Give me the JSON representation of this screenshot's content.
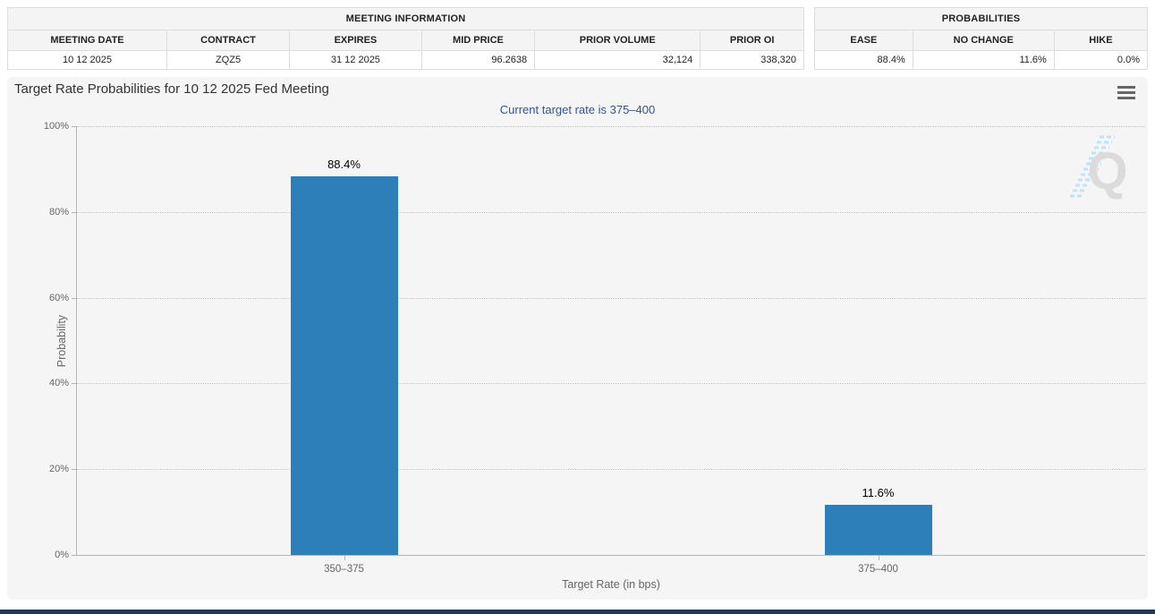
{
  "meeting_information_table": {
    "title": "MEETING INFORMATION",
    "columns": [
      "MEETING DATE",
      "CONTRACT",
      "EXPIRES",
      "MID PRICE",
      "PRIOR VOLUME",
      "PRIOR OI"
    ],
    "row": [
      "10 12 2025",
      "ZQZ5",
      "31 12 2025",
      "96.2638",
      "32,124",
      "338,320"
    ]
  },
  "probabilities_table": {
    "title": "PROBABILITIES",
    "columns": [
      "EASE",
      "NO CHANGE",
      "HIKE"
    ],
    "row": [
      "88.4%",
      "11.6%",
      "0.0%"
    ]
  },
  "watermark": {
    "letter": "Q"
  },
  "chart_data": {
    "type": "bar",
    "title": "Target Rate Probabilities for 10 12 2025 Fed Meeting",
    "subtitle": "Current target rate is 375–400",
    "categories": [
      "350–375",
      "375–400"
    ],
    "values": [
      88.4,
      11.6
    ],
    "data_labels": [
      "88.4%",
      "11.6%"
    ],
    "xlabel": "Target Rate (in bps)",
    "ylabel": "Probability",
    "ylim": [
      0,
      100
    ],
    "yticks": [
      0,
      20,
      40,
      60,
      80,
      100
    ],
    "ytick_labels": [
      "0%",
      "20%",
      "40%",
      "60%",
      "80%",
      "100%"
    ],
    "bar_color": "#2C7FB9",
    "grid": "dotted-horizontal",
    "legend": "none"
  },
  "colors": {
    "bar": "#2C7FB9",
    "subtitle_text": "#33558E",
    "panel_background": "#F5F5F5",
    "table_header_background": "#F4F4F4",
    "bottom_bar": "#1F3B57"
  }
}
